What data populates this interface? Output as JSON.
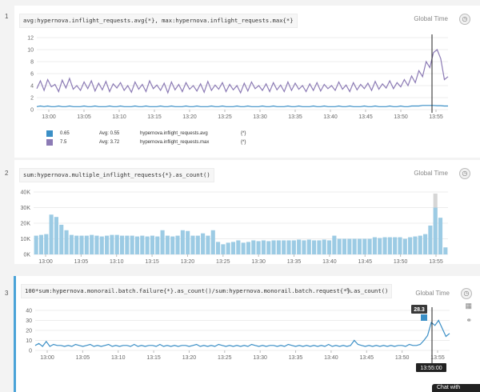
{
  "rows": [
    {
      "number": "1",
      "query": "avg:hypernova.inflight_requests.avg{*}, max:hypernova.inflight_requests.max{*}",
      "global_time": "Global Time",
      "legend": [
        {
          "color": "#3b8fc6",
          "value": "0.65",
          "avg": "Avg: 0.55",
          "metric": "hypernova.inflight_requests.avg",
          "scope": "{*}"
        },
        {
          "color": "#8c7bb5",
          "value": "7.5",
          "avg": "Avg: 3.72",
          "metric": "hypernova.inflight_requests.max",
          "scope": "{*}"
        }
      ]
    },
    {
      "number": "2",
      "query": "sum:hypernova.multiple_inflight_requests{*}.as_count()",
      "global_time": "Global Time"
    },
    {
      "number": "3",
      "query": "100*sum:hypernova.monorail.batch.failure{*}.as_count()/sum:hypernova.monorail.batch.request{*}.as_count()",
      "global_time": "Global Time",
      "tooltip_value": "28.3",
      "cursor_time": "13:55:00"
    }
  ],
  "chat_label": "Chat with",
  "chart_data": [
    {
      "type": "line",
      "x_ticks": [
        "13:00",
        "13:05",
        "13:10",
        "13:15",
        "13:20",
        "13:25",
        "13:30",
        "13:35",
        "13:40",
        "13:45",
        "13:50",
        "13:55"
      ],
      "y_ticks": [
        "0",
        "2",
        "4",
        "6",
        "8",
        "10",
        "12"
      ],
      "ylim": [
        0,
        12
      ],
      "grid": true,
      "series": [
        {
          "name": "hypernova.inflight_requests.max",
          "color": "#8c7bb5",
          "values": [
            3.5,
            4.8,
            3.2,
            5.0,
            3.8,
            4.2,
            3.0,
            4.9,
            3.6,
            5.2,
            3.4,
            4.0,
            3.2,
            4.6,
            3.5,
            4.8,
            3.1,
            4.4,
            3.3,
            4.7,
            3.0,
            4.3,
            3.6,
            4.5,
            3.2,
            4.0,
            2.9,
            4.6,
            3.4,
            4.2,
            3.0,
            4.8,
            3.5,
            4.1,
            3.2,
            4.4,
            2.8,
            4.6,
            3.3,
            4.2,
            3.0,
            4.5,
            3.4,
            4.0,
            3.1,
            4.3,
            2.9,
            4.7,
            3.2,
            4.1,
            3.4,
            4.5,
            3.0,
            4.2,
            3.3,
            4.0,
            2.8,
            4.4,
            3.1,
            4.6,
            3.5,
            4.0,
            3.2,
            4.3,
            3.0,
            4.5,
            3.3,
            4.1,
            3.0,
            4.6,
            3.2,
            4.4,
            3.4,
            4.0,
            3.0,
            4.3,
            3.2,
            4.5,
            3.1,
            4.2,
            3.5,
            4.0,
            3.2,
            4.6,
            3.4,
            4.1,
            3.0,
            4.5,
            3.3,
            4.2,
            3.5,
            4.4,
            3.2,
            4.7,
            3.4,
            4.3,
            3.6,
            4.8,
            3.5,
            4.5,
            3.8,
            5.0,
            4.0,
            5.6,
            4.5,
            6.5,
            5.5,
            8.0,
            7.0,
            9.5,
            10.0,
            8.5,
            5.0,
            5.5
          ]
        },
        {
          "name": "hypernova.inflight_requests.avg",
          "color": "#3b8fc6",
          "values": [
            0.5,
            0.6,
            0.5,
            0.6,
            0.5,
            0.5,
            0.6,
            0.5,
            0.5,
            0.6,
            0.5,
            0.5,
            0.5,
            0.6,
            0.5,
            0.5,
            0.6,
            0.5,
            0.5,
            0.5,
            0.6,
            0.5,
            0.5,
            0.6,
            0.5,
            0.5,
            0.5,
            0.6,
            0.5,
            0.5,
            0.6,
            0.5,
            0.5,
            0.5,
            0.6,
            0.5,
            0.5,
            0.6,
            0.5,
            0.5,
            0.5,
            0.6,
            0.5,
            0.5,
            0.6,
            0.5,
            0.5,
            0.5,
            0.6,
            0.5,
            0.5,
            0.6,
            0.5,
            0.5,
            0.5,
            0.6,
            0.5,
            0.5,
            0.6,
            0.5,
            0.5,
            0.5,
            0.6,
            0.5,
            0.5,
            0.6,
            0.5,
            0.5,
            0.5,
            0.6,
            0.5,
            0.5,
            0.6,
            0.5,
            0.5,
            0.5,
            0.6,
            0.5,
            0.5,
            0.6,
            0.5,
            0.5,
            0.5,
            0.6,
            0.5,
            0.5,
            0.6,
            0.5,
            0.5,
            0.5,
            0.6,
            0.5,
            0.5,
            0.6,
            0.5,
            0.5,
            0.5,
            0.6,
            0.5,
            0.5,
            0.6,
            0.5,
            0.5,
            0.6,
            0.6,
            0.6,
            0.7,
            0.7,
            0.7,
            0.7,
            0.65,
            0.65,
            0.6,
            0.6
          ]
        }
      ]
    },
    {
      "type": "bar",
      "x_ticks": [
        "13:00",
        "13:05",
        "13:10",
        "13:15",
        "13:20",
        "13:25",
        "13:30",
        "13:35",
        "13:40",
        "13:45",
        "13:50",
        "13:55"
      ],
      "y_ticks": [
        "0K",
        "10K",
        "20K",
        "30K",
        "40K"
      ],
      "ylim": [
        0,
        40000
      ],
      "bar_color": "#9ccbe4",
      "partial_color": "#d6d6d6",
      "values": [
        12000,
        12500,
        13000,
        25500,
        24000,
        19000,
        15500,
        12500,
        12000,
        12000,
        12000,
        12500,
        12000,
        11500,
        12000,
        12500,
        12500,
        12000,
        12000,
        12000,
        11500,
        12000,
        11500,
        12000,
        11500,
        15500,
        12000,
        11500,
        12000,
        15500,
        15000,
        12000,
        12000,
        13500,
        12000,
        15500,
        8000,
        6500,
        7500,
        8000,
        9000,
        7500,
        8000,
        9000,
        8500,
        9000,
        8500,
        9000,
        9000,
        9000,
        9000,
        9000,
        9500,
        9000,
        9500,
        9000,
        9000,
        9500,
        9000,
        12000,
        10000,
        10000,
        10000,
        10000,
        10000,
        10000,
        10000,
        11000,
        10500,
        11000,
        11000,
        11000,
        11000,
        10000,
        11000,
        11500,
        12000,
        13000,
        18500,
        30000,
        23500,
        4500
      ],
      "partial_top": {
        "index": 79,
        "value": 39000
      }
    },
    {
      "type": "line",
      "x_ticks": [
        "13:00",
        "13:05",
        "13:10",
        "13:15",
        "13:20",
        "13:25",
        "13:30",
        "13:35",
        "13:40",
        "13:45",
        "13:50",
        "13:55"
      ],
      "y_ticks": [
        "0",
        "10",
        "20",
        "30",
        "40"
      ],
      "ylim": [
        0,
        40
      ],
      "color": "#3b8fc6",
      "values": [
        5,
        7,
        4,
        9,
        4,
        6,
        5,
        5,
        4,
        5,
        4,
        6,
        5,
        4,
        5,
        6,
        4,
        5,
        4,
        5,
        6,
        4,
        5,
        4,
        5,
        5,
        4,
        6,
        4,
        5,
        4,
        5,
        5,
        4,
        6,
        4,
        5,
        4,
        5,
        4,
        5,
        5,
        4,
        5,
        6,
        4,
        5,
        4,
        5,
        4,
        6,
        5,
        4,
        5,
        4,
        5,
        4,
        5,
        4,
        6,
        5,
        4,
        5,
        4,
        5,
        5,
        4,
        5,
        4,
        6,
        5,
        4,
        5,
        4,
        5,
        4,
        5,
        4,
        5,
        4,
        6,
        4,
        5,
        4,
        5,
        4,
        5,
        10,
        6,
        5,
        4,
        5,
        4,
        5,
        4,
        5,
        4,
        5,
        4,
        5,
        5,
        4,
        6,
        5,
        5,
        6,
        10,
        15,
        28,
        25,
        30,
        22,
        14,
        17
      ]
    }
  ]
}
